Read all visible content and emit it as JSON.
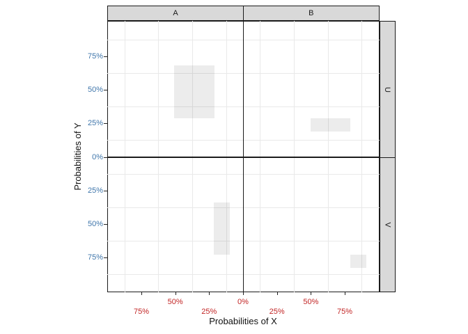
{
  "figure": {
    "x_axis_title": "Probabilities of X",
    "y_axis_title": "Probabilities of Y",
    "column_facets": [
      "A",
      "B"
    ],
    "row_facets": [
      "U",
      "V"
    ]
  },
  "chart_data": {
    "type": "bar",
    "title": "",
    "xlabel": "Probabilities of X",
    "ylabel": "Probabilities of Y",
    "facet_columns": [
      "A",
      "B"
    ],
    "facet_rows": [
      "U",
      "V"
    ],
    "layout": {
      "facet_grid": "2x2, zero gap between panels, x axis mirrored around 0% at the panel boundary, y axis mirrored around 0% at the panel boundary",
      "grid": "minor gridlines only",
      "legend": "none"
    },
    "axes": {
      "x_range_pct_each_side": [
        0,
        100
      ],
      "y_range_pct_each_side": [
        0,
        100
      ],
      "x_breaks_pct": [
        0,
        25,
        50,
        75
      ],
      "y_breaks_pct": [
        0,
        25,
        50,
        75
      ],
      "minor_gridlines_pct": [
        12.5,
        37.5,
        62.5,
        87.5
      ],
      "x_labels": [
        {
          "text": "50%",
          "side": "A",
          "value": 50,
          "row": 1
        },
        {
          "text": "0%",
          "side": "C",
          "value": 0,
          "row": 1
        },
        {
          "text": "50%",
          "side": "B",
          "value": 50,
          "row": 1
        },
        {
          "text": "75%",
          "side": "A",
          "value": 75,
          "row": 2
        },
        {
          "text": "25%",
          "side": "A",
          "value": 25,
          "row": 2
        },
        {
          "text": "25%",
          "side": "B",
          "value": 25,
          "row": 2
        },
        {
          "text": "75%",
          "side": "B",
          "value": 75,
          "row": 2
        }
      ],
      "y_labels": [
        {
          "text": "75%",
          "side": "U",
          "value": 75
        },
        {
          "text": "50%",
          "side": "U",
          "value": 50
        },
        {
          "text": "25%",
          "side": "U",
          "value": 25
        },
        {
          "text": "0%",
          "side": "C",
          "value": 0
        },
        {
          "text": "25%",
          "side": "V",
          "value": 25
        },
        {
          "text": "50%",
          "side": "V",
          "value": 50
        },
        {
          "text": "75%",
          "side": "V",
          "value": 75
        }
      ]
    },
    "rects": [
      {
        "facet_col": "A",
        "facet_row": "U",
        "x_pct": [
          21,
          51
        ],
        "y_pct": [
          29,
          68.5
        ]
      },
      {
        "facet_col": "B",
        "facet_row": "U",
        "x_pct": [
          50,
          79
        ],
        "y_pct": [
          19,
          29
        ]
      },
      {
        "facet_col": "A",
        "facet_row": "V",
        "x_pct": [
          10,
          21.5
        ],
        "y_pct": [
          34,
          73
        ]
      },
      {
        "facet_col": "B",
        "facet_row": "V",
        "x_pct": [
          79,
          91
        ],
        "y_pct": [
          73,
          83
        ]
      }
    ],
    "colors": {
      "x_tick_label": "#c22525",
      "y_tick_label": "#3f76ab",
      "axis_title": "#111111",
      "strip_fill": "#d9d9d9",
      "panel_border": "#1a1a1a",
      "gridline": "#e9e9e9",
      "bar_fill": "rgba(0,0,0,0.075)",
      "tick_mark": "#222222"
    }
  }
}
